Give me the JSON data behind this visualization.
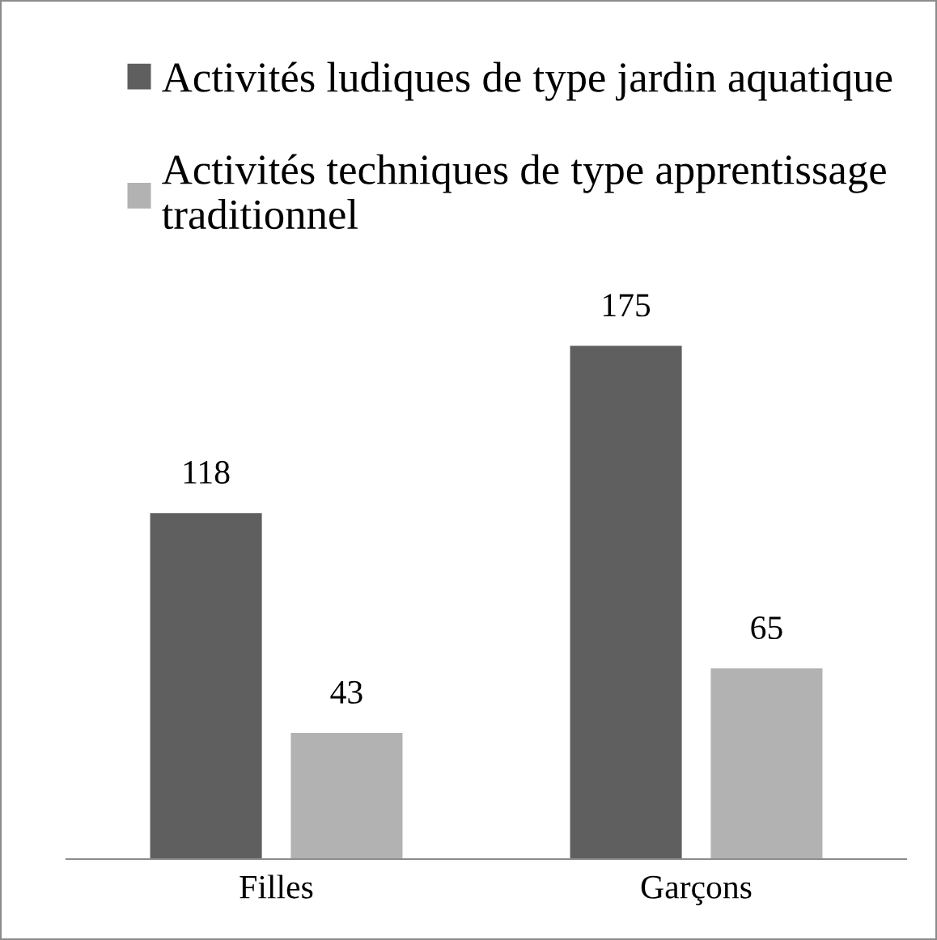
{
  "chart_data": {
    "type": "bar",
    "relative": false,
    "categories": [
      "Filles",
      "Garçons"
    ],
    "series": [
      {
        "name": "Activités ludiques de type jardin aquatique",
        "color": "#5f5f5f",
        "values": [
          118,
          175
        ]
      },
      {
        "name": "Activités techniques de type apprentissage\ntraditionnel",
        "color": "#b2b2b2",
        "values": [
          43,
          65
        ]
      }
    ],
    "data_labels": true,
    "legend": "top",
    "grid": false,
    "tick_labels": "x"
  }
}
